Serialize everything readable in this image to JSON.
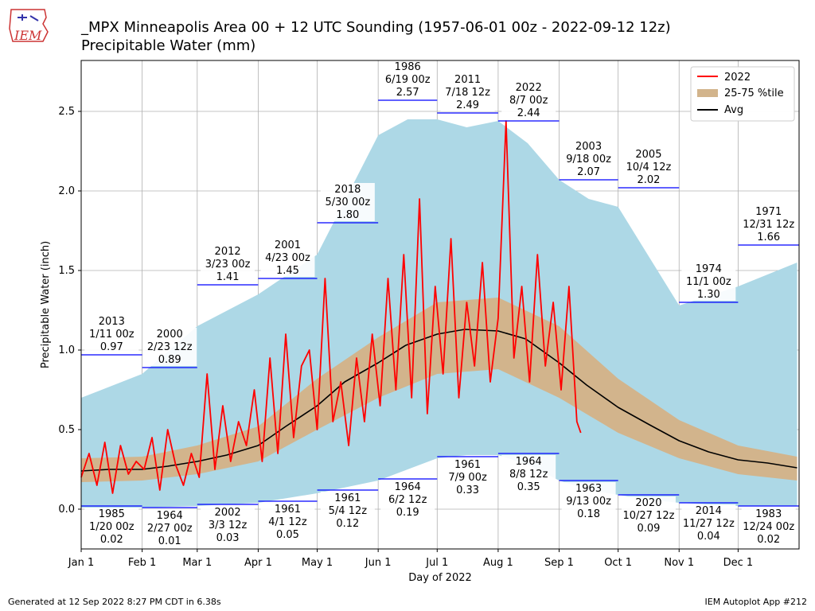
{
  "header": {
    "title": "_MPX Minneapolis Area  00 + 12 UTC Sounding (1957-06-01 00z - 2022-09-12 12z)",
    "subtitle": "Precipitable Water (mm)",
    "logo_text": "IEM"
  },
  "footer": {
    "generated": "Generated at 12 Sep 2022 8:27 PM CDT in 6.38s",
    "app": "IEM Autoplot App #212"
  },
  "colors": {
    "range": "#add8e6",
    "iqr": "#d2b48c",
    "current": "#ff0000",
    "avg": "#000000",
    "record": "#0000ff"
  },
  "chart_data": {
    "type": "area",
    "xlabel": "Day of 2022",
    "ylabel": "Precipitable Water (inch)",
    "ylim": [
      -0.25,
      2.82
    ],
    "yticks": [
      0.0,
      0.5,
      1.0,
      1.5,
      2.0,
      2.5
    ],
    "ytick_labels": [
      "0.0",
      "0.5",
      "1.0",
      "1.5",
      "2.0",
      "2.5"
    ],
    "xticks": [
      1,
      32,
      60,
      91,
      121,
      152,
      182,
      213,
      244,
      274,
      305,
      335
    ],
    "xtick_labels": [
      "Jan 1",
      "Feb 1",
      "Mar 1",
      "Apr 1",
      "May 1",
      "Jun 1",
      "Jul 1",
      "Aug 1",
      "Sep 1",
      "Oct 1",
      "Nov 1",
      "Dec 1"
    ],
    "grid": true,
    "legend": {
      "placement": "top-right",
      "entries": [
        "2022",
        "25-75 %tile",
        "Avg"
      ]
    },
    "series": [
      {
        "name": "Avg",
        "doy": [
          1,
          15,
          32,
          45,
          60,
          75,
          91,
          105,
          121,
          135,
          152,
          166,
          182,
          196,
          213,
          227,
          244,
          258,
          274,
          290,
          305,
          320,
          335,
          350,
          365
        ],
        "values": [
          0.24,
          0.25,
          0.25,
          0.27,
          0.3,
          0.34,
          0.4,
          0.52,
          0.65,
          0.8,
          0.92,
          1.03,
          1.1,
          1.13,
          1.12,
          1.07,
          0.92,
          0.78,
          0.64,
          0.53,
          0.43,
          0.36,
          0.31,
          0.29,
          0.26
        ]
      },
      {
        "name": "25-75 %tile",
        "doy": [
          1,
          32,
          60,
          91,
          121,
          152,
          182,
          213,
          244,
          274,
          305,
          335,
          365
        ],
        "low": [
          0.17,
          0.18,
          0.22,
          0.3,
          0.5,
          0.7,
          0.85,
          0.88,
          0.7,
          0.48,
          0.32,
          0.22,
          0.18
        ],
        "high": [
          0.32,
          0.33,
          0.4,
          0.52,
          0.82,
          1.08,
          1.3,
          1.33,
          1.15,
          0.82,
          0.56,
          0.4,
          0.33
        ]
      },
      {
        "name": "min-max range",
        "doy": [
          1,
          32,
          60,
          91,
          121,
          152,
          167,
          182,
          197,
          213,
          228,
          244,
          259,
          274,
          289,
          305,
          335,
          365
        ],
        "low": [
          0.01,
          0.01,
          0.02,
          0.04,
          0.1,
          0.18,
          0.25,
          0.32,
          0.34,
          0.34,
          0.28,
          0.18,
          0.12,
          0.09,
          0.06,
          0.04,
          0.02,
          0.02
        ],
        "high": [
          0.7,
          0.85,
          1.15,
          1.35,
          1.6,
          2.35,
          2.45,
          2.45,
          2.4,
          2.44,
          2.3,
          2.07,
          1.95,
          1.9,
          1.6,
          1.28,
          1.4,
          1.55
        ]
      },
      {
        "name": "2022",
        "doy": [
          1,
          5,
          9,
          13,
          17,
          21,
          25,
          29,
          33,
          37,
          41,
          45,
          49,
          53,
          57,
          61,
          65,
          69,
          73,
          77,
          81,
          85,
          89,
          93,
          97,
          101,
          105,
          109,
          113,
          117,
          121,
          125,
          129,
          133,
          137,
          141,
          145,
          149,
          153,
          157,
          161,
          165,
          169,
          173,
          177,
          181,
          185,
          189,
          193,
          197,
          201,
          205,
          209,
          213,
          217,
          221,
          225,
          229,
          233,
          237,
          241,
          245,
          249,
          253,
          255
        ],
        "values": [
          0.2,
          0.35,
          0.15,
          0.42,
          0.1,
          0.4,
          0.22,
          0.3,
          0.25,
          0.45,
          0.12,
          0.5,
          0.28,
          0.15,
          0.35,
          0.2,
          0.85,
          0.25,
          0.65,
          0.3,
          0.55,
          0.4,
          0.75,
          0.3,
          0.95,
          0.35,
          1.1,
          0.45,
          0.9,
          1.0,
          0.5,
          1.45,
          0.55,
          0.8,
          0.4,
          0.95,
          0.55,
          1.1,
          0.65,
          1.45,
          0.75,
          1.6,
          0.7,
          1.95,
          0.6,
          1.4,
          0.85,
          1.7,
          0.7,
          1.3,
          0.9,
          1.55,
          0.8,
          1.2,
          2.44,
          0.95,
          1.4,
          0.8,
          1.6,
          0.9,
          1.3,
          0.75,
          1.4,
          0.55,
          0.48
        ]
      }
    ],
    "record_segments": [
      {
        "kind": "max",
        "start": 1,
        "end": 32,
        "value": 0.97,
        "year": "2013",
        "when": "1/11 00z"
      },
      {
        "kind": "max",
        "start": 32,
        "end": 60,
        "value": 0.89,
        "year": "2000",
        "when": "2/23 12z"
      },
      {
        "kind": "max",
        "start": 60,
        "end": 91,
        "value": 1.41,
        "year": "2012",
        "when": "3/23 00z"
      },
      {
        "kind": "max",
        "start": 91,
        "end": 121,
        "value": 1.45,
        "year": "2001",
        "when": "4/23 00z"
      },
      {
        "kind": "max",
        "start": 121,
        "end": 152,
        "value": 1.8,
        "year": "2018",
        "when": "5/30 00z"
      },
      {
        "kind": "max",
        "start": 152,
        "end": 182,
        "value": 2.57,
        "year": "1986",
        "when": "6/19 00z"
      },
      {
        "kind": "max",
        "start": 182,
        "end": 213,
        "value": 2.49,
        "year": "2011",
        "when": "7/18 12z"
      },
      {
        "kind": "max",
        "start": 213,
        "end": 244,
        "value": 2.44,
        "year": "2022",
        "when": "8/7 00z"
      },
      {
        "kind": "max",
        "start": 244,
        "end": 274,
        "value": 2.07,
        "year": "2003",
        "when": "9/18 00z"
      },
      {
        "kind": "max",
        "start": 274,
        "end": 305,
        "value": 2.02,
        "year": "2005",
        "when": "10/4 12z"
      },
      {
        "kind": "max",
        "start": 305,
        "end": 335,
        "value": 1.3,
        "year": "1974",
        "when": "11/1 00z"
      },
      {
        "kind": "max",
        "start": 335,
        "end": 366,
        "value": 1.66,
        "year": "1971",
        "when": "12/31 12z"
      },
      {
        "kind": "min",
        "start": 1,
        "end": 32,
        "value": 0.02,
        "year": "1985",
        "when": "1/20 00z"
      },
      {
        "kind": "min",
        "start": 32,
        "end": 60,
        "value": 0.01,
        "year": "1964",
        "when": "2/27 00z"
      },
      {
        "kind": "min",
        "start": 60,
        "end": 91,
        "value": 0.03,
        "year": "2002",
        "when": "3/3 12z"
      },
      {
        "kind": "min",
        "start": 91,
        "end": 121,
        "value": 0.05,
        "year": "1961",
        "when": "4/1 12z"
      },
      {
        "kind": "min",
        "start": 121,
        "end": 152,
        "value": 0.12,
        "year": "1961",
        "when": "5/4 12z"
      },
      {
        "kind": "min",
        "start": 152,
        "end": 182,
        "value": 0.19,
        "year": "1964",
        "when": "6/2 12z"
      },
      {
        "kind": "min",
        "start": 182,
        "end": 213,
        "value": 0.33,
        "year": "1961",
        "when": "7/9 00z"
      },
      {
        "kind": "min",
        "start": 213,
        "end": 244,
        "value": 0.35,
        "year": "1964",
        "when": "8/8 12z"
      },
      {
        "kind": "min",
        "start": 244,
        "end": 274,
        "value": 0.18,
        "year": "1963",
        "when": "9/13 00z"
      },
      {
        "kind": "min",
        "start": 274,
        "end": 305,
        "value": 0.09,
        "year": "2020",
        "when": "10/27 12z"
      },
      {
        "kind": "min",
        "start": 305,
        "end": 335,
        "value": 0.04,
        "year": "2014",
        "when": "11/27 12z"
      },
      {
        "kind": "min",
        "start": 335,
        "end": 366,
        "value": 0.02,
        "year": "1983",
        "when": "12/24 00z"
      }
    ]
  }
}
